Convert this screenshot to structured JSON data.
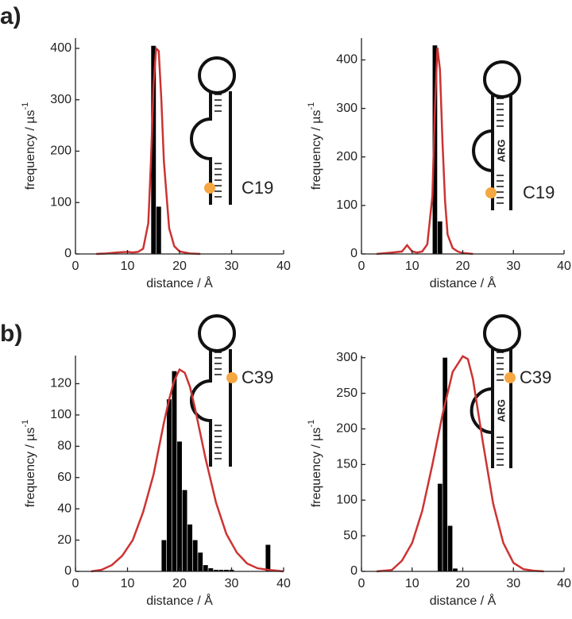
{
  "chart_data": [
    {
      "type": "histogram",
      "panel_label": "a)",
      "xlabel": "distance / Å",
      "ylabel": "frequency / µs",
      "ylabel_superscript": "-1",
      "bins": [
        14.5,
        15.5,
        16.5
      ],
      "values": [
        405,
        92
      ],
      "color": "#000000",
      "curve": {
        "color": "#cc3333",
        "x": [
          4,
          6,
          8,
          10,
          11,
          12,
          13,
          14,
          14.5,
          15,
          15.5,
          16,
          16.5,
          17,
          18,
          19,
          20,
          22,
          24
        ],
        "values": [
          0,
          1,
          3,
          4,
          3,
          4,
          10,
          60,
          180,
          330,
          400,
          395,
          300,
          180,
          50,
          15,
          5,
          1,
          0
        ]
      },
      "xlim": [
        0,
        40
      ],
      "xticks": [
        0,
        10,
        20,
        30,
        40
      ],
      "ylim": [
        0,
        420
      ],
      "yticks": [
        0,
        100,
        200,
        300,
        400
      ],
      "annotations": [
        "C19"
      ]
    },
    {
      "type": "histogram",
      "xlabel": "distance / Å",
      "ylabel": "frequency / µs",
      "ylabel_superscript": "-1",
      "bins": [
        14,
        15,
        16
      ],
      "values": [
        430,
        67
      ],
      "color": "#000000",
      "curve": {
        "color": "#cc3333",
        "x": [
          3,
          6,
          8,
          9,
          10,
          11,
          12,
          13,
          14,
          14.5,
          15,
          15.5,
          16,
          16.5,
          17,
          18,
          19,
          20,
          22
        ],
        "values": [
          0,
          3,
          5,
          18,
          5,
          3,
          5,
          20,
          120,
          300,
          425,
          380,
          230,
          110,
          40,
          12,
          5,
          2,
          0
        ]
      },
      "xlim": [
        0,
        40
      ],
      "xticks": [
        0,
        10,
        20,
        30,
        40
      ],
      "ylim": [
        0,
        445
      ],
      "yticks": [
        0,
        100,
        200,
        300,
        400
      ],
      "annotations": [
        "C19",
        "ARG"
      ]
    },
    {
      "type": "histogram",
      "panel_label": "b)",
      "xlabel": "distance / Å",
      "ylabel": "frequency / µs",
      "ylabel_superscript": "-1",
      "bins": [
        16.5,
        17.5,
        18.5,
        19.5,
        20.5,
        21.5,
        22.5,
        23.5,
        24.5,
        25.5,
        26.5,
        27.5,
        28.5,
        29.5,
        30.5,
        31.5,
        32.5,
        33.5,
        34.5,
        35.5,
        36.5,
        37.5
      ],
      "values": [
        20,
        110,
        128,
        83,
        52,
        30,
        20,
        12,
        4,
        2,
        1,
        1,
        1,
        1,
        0,
        0,
        0,
        0,
        0,
        0,
        17
      ],
      "color": "#000000",
      "curve": {
        "color": "#cc3333",
        "x": [
          3,
          5,
          7,
          9,
          11,
          13,
          15,
          17,
          18,
          19,
          20,
          21,
          22,
          23,
          24,
          25,
          27,
          29,
          31,
          33,
          35,
          37,
          40
        ],
        "values": [
          0,
          1,
          4,
          10,
          20,
          38,
          62,
          95,
          110,
          122,
          129,
          127,
          118,
          104,
          88,
          72,
          44,
          24,
          12,
          5,
          2,
          1,
          0
        ]
      },
      "xlim": [
        0,
        40
      ],
      "xticks": [
        0,
        10,
        20,
        30,
        40
      ],
      "ylim": [
        0,
        138
      ],
      "yticks": [
        0,
        20,
        40,
        60,
        80,
        100,
        120
      ],
      "annotations": [
        "C39"
      ]
    },
    {
      "type": "histogram",
      "xlabel": "distance / Å",
      "ylabel": "frequency / µs",
      "ylabel_superscript": "-1",
      "bins": [
        15,
        16,
        17,
        18,
        19
      ],
      "values": [
        123,
        300,
        64,
        4
      ],
      "color": "#000000",
      "curve": {
        "color": "#cc3333",
        "x": [
          3,
          6,
          8,
          10,
          12,
          14,
          16,
          18,
          20,
          21,
          22,
          24,
          26,
          28,
          30,
          32,
          34,
          36
        ],
        "values": [
          0,
          2,
          15,
          40,
          85,
          150,
          220,
          280,
          302,
          298,
          270,
          180,
          95,
          40,
          12,
          3,
          1,
          0
        ]
      },
      "xlim": [
        0,
        40
      ],
      "xticks": [
        0,
        10,
        20,
        30,
        40
      ],
      "ylim": [
        0,
        303
      ],
      "yticks": [
        0,
        50,
        100,
        150,
        200,
        250,
        300
      ],
      "annotations": [
        "C39",
        "ARG"
      ]
    }
  ]
}
